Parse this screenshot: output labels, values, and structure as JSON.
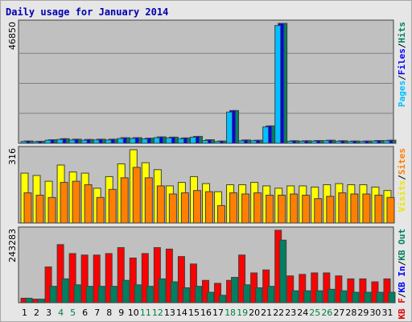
{
  "chart_data": [
    {
      "type": "bar",
      "title": "Daily usage for January 2014",
      "categories": [
        "1",
        "2",
        "3",
        "4",
        "5",
        "6",
        "7",
        "8",
        "9",
        "10",
        "11",
        "12",
        "13",
        "14",
        "15",
        "16",
        "17",
        "18",
        "19",
        "20",
        "21",
        "22",
        "23",
        "24",
        "25",
        "26",
        "27",
        "28",
        "29",
        "30",
        "31"
      ],
      "weekend_days": [
        "4",
        "5",
        "11",
        "12",
        "18",
        "19",
        "25",
        "26"
      ],
      "panels": [
        {
          "id": "pages-files-hits",
          "max_label": "46850",
          "ylim": [
            0,
            46850
          ],
          "legend": [
            {
              "label": "Pages",
              "color": "#00c0ff"
            },
            {
              "label": "/",
              "color": "#000000"
            },
            {
              "label": "Files",
              "color": "#0000ff"
            },
            {
              "label": "/",
              "color": "#000000"
            },
            {
              "label": "Hits",
              "color": "#008060"
            }
          ],
          "series": [
            {
              "name": "Hits",
              "color": "#008060",
              "values": [
                900,
                800,
                1400,
                1800,
                1600,
                1500,
                1600,
                1600,
                2200,
                2200,
                2000,
                2500,
                2400,
                2100,
                2700,
                1400,
                900,
                12800,
                1300,
                1200,
                6800,
                46850,
                1000,
                1000,
                1100,
                1200,
                1000,
                900,
                900,
                1100,
                1200
              ]
            },
            {
              "name": "Files",
              "color": "#0000ff",
              "values": [
                900,
                800,
                1400,
                1800,
                1600,
                1500,
                1600,
                1600,
                2200,
                2200,
                2000,
                2500,
                2400,
                2100,
                2700,
                1400,
                900,
                12800,
                1300,
                1200,
                6800,
                46850,
                1000,
                1000,
                1100,
                1200,
                1000,
                900,
                900,
                1100,
                1200
              ]
            },
            {
              "name": "Pages",
              "color": "#00c0ff",
              "values": [
                700,
                600,
                1200,
                1500,
                1300,
                1200,
                1300,
                1300,
                1900,
                1900,
                1700,
                2200,
                2100,
                1800,
                2400,
                1100,
                700,
                12200,
                1000,
                1000,
                6400,
                46000,
                800,
                800,
                900,
                1000,
                800,
                700,
                700,
                900,
                1000
              ]
            }
          ]
        },
        {
          "id": "visits-sites",
          "max_label": "316",
          "ylim": [
            0,
            316
          ],
          "legend": [
            {
              "label": "Visits",
              "color": "#e8e800"
            },
            {
              "label": "/",
              "color": "#000000"
            },
            {
              "label": "Sites",
              "color": "#ff8000"
            }
          ],
          "series": [
            {
              "name": "Visits",
              "color": "#ffff00",
              "values": [
                215,
                205,
                180,
                250,
                220,
                215,
                150,
                200,
                255,
                316,
                260,
                230,
                160,
                175,
                200,
                170,
                135,
                165,
                165,
                175,
                160,
                150,
                160,
                160,
                155,
                165,
                170,
                165,
                165,
                155,
                140
              ]
            },
            {
              "name": "Sites",
              "color": "#ff8000",
              "values": [
                130,
                120,
                110,
                175,
                180,
                165,
                110,
                145,
                195,
                240,
                195,
                160,
                125,
                130,
                140,
                135,
                75,
                130,
                125,
                130,
                120,
                120,
                125,
                120,
                105,
                115,
                130,
                125,
                125,
                120,
                110
              ]
            }
          ]
        },
        {
          "id": "kbf-kbin-kbout",
          "max_label": "243283",
          "ylim": [
            0,
            243283
          ],
          "legend": [
            {
              "label": "KB F",
              "color": "#e00000"
            },
            {
              "label": "/",
              "color": "#000000"
            },
            {
              "label": "KB In",
              "color": "#0000ff"
            },
            {
              "label": "/",
              "color": "#000000"
            },
            {
              "label": "KB Out",
              "color": "#008060"
            }
          ],
          "series": [
            {
              "name": "KB F",
              "color": "#ff0000",
              "values": [
                15000,
                12000,
                120000,
                195000,
                165000,
                160000,
                160000,
                165000,
                185000,
                150000,
                165000,
                185000,
                180000,
                155000,
                130000,
                75000,
                65000,
                75000,
                160000,
                100000,
                110000,
                243283,
                90000,
                95000,
                100000,
                100000,
                90000,
                80000,
                80000,
                70000,
                80000
              ]
            },
            {
              "name": "KB Out",
              "color": "#008060",
              "values": [
                15000,
                12000,
                55000,
                80000,
                60000,
                55000,
                55000,
                55000,
                75000,
                60000,
                55000,
                80000,
                70000,
                50000,
                55000,
                35000,
                25000,
                85000,
                60000,
                50000,
                55000,
                210000,
                40000,
                40000,
                40000,
                45000,
                40000,
                35000,
                35000,
                35000,
                35000
              ]
            }
          ]
        }
      ]
    }
  ]
}
